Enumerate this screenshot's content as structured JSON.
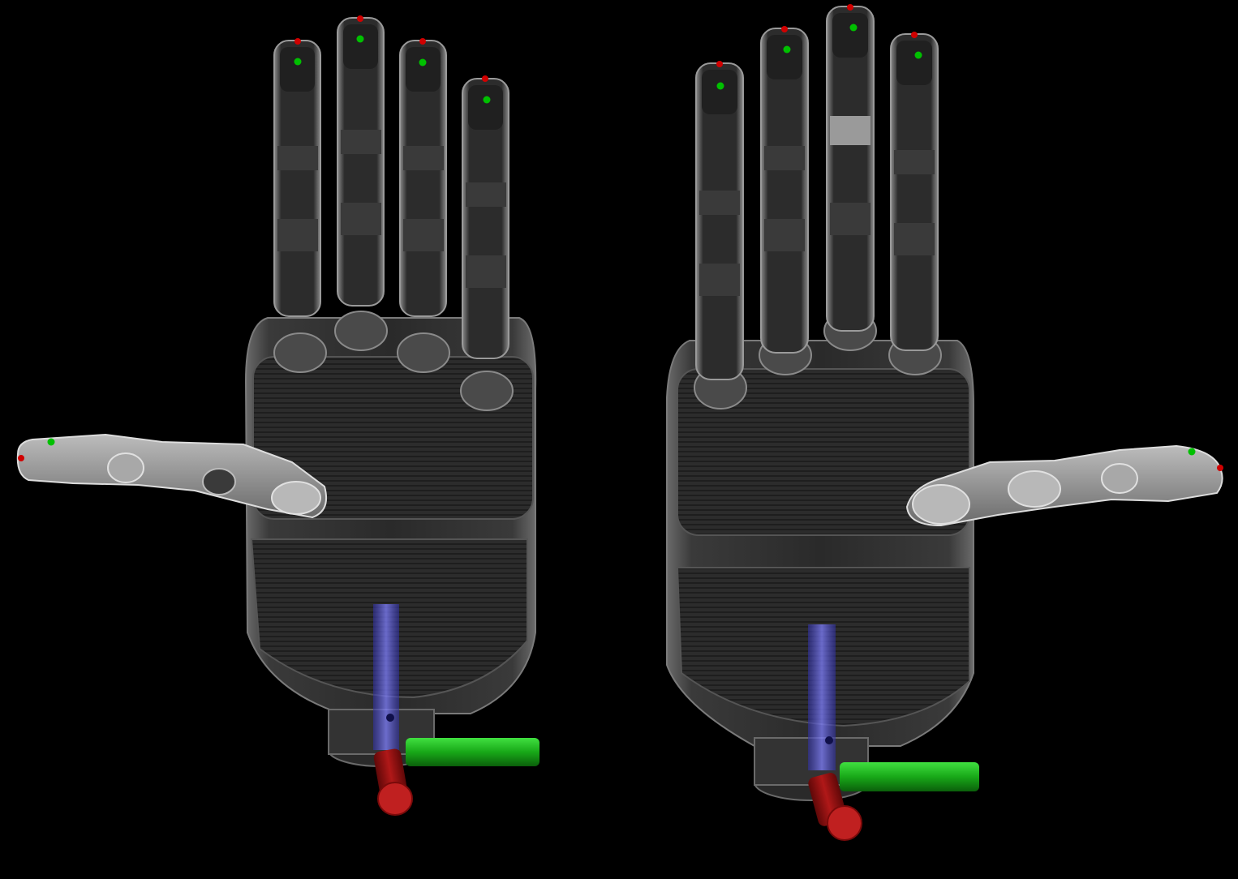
{
  "scene": {
    "background": "#000000",
    "hands": [
      {
        "id": "left-hand",
        "side": "left"
      },
      {
        "id": "right-hand",
        "side": "right"
      }
    ],
    "colors": {
      "shell_dark": "#2e2e2e",
      "shell_mid": "#4a4a4a",
      "shell_light": "#9a9a9a",
      "finger_dark": "#262626",
      "marker_tip": "#d00000",
      "marker_pad": "#00c000",
      "axis_x": "#b01010",
      "axis_y": "#18b018",
      "axis_z": "#4040d0"
    },
    "icons": [
      "robot-hand-model",
      "coordinate-axes-gizmo",
      "fingertip-marker"
    ]
  }
}
